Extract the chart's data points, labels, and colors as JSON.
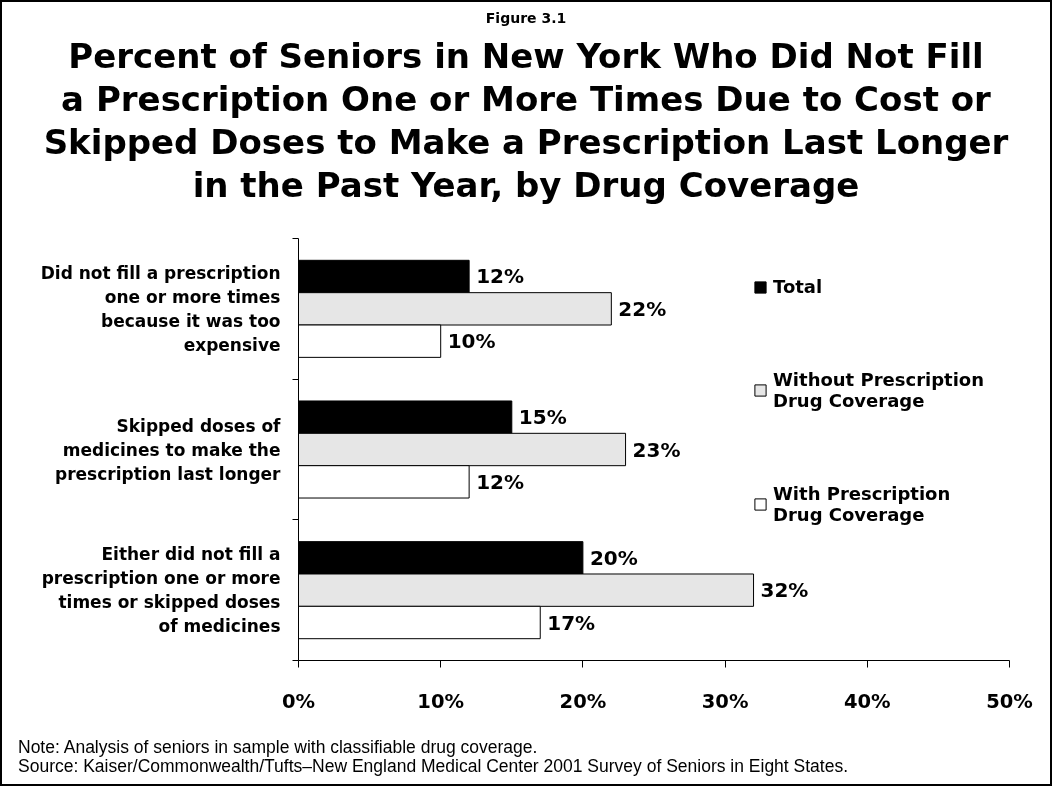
{
  "chart_data": {
    "type": "bar",
    "orientation": "horizontal",
    "subtitle": "Figure 3.1",
    "title": "Percent of Seniors in New York Who Did Not Fill\na Prescription One or More Times Due to Cost or\nSkipped Doses to Make a Prescription Last Longer\nin the Past Year, by Drug Coverage",
    "categories": [
      "Did not fill a prescription\none or more times\nbecause it was too\nexpensive",
      "Skipped doses of\nmedicines to make the\nprescription last longer",
      "Either did not fill a\nprescription one or more\ntimes or skipped doses\nof medicines"
    ],
    "series": [
      {
        "name": "Total",
        "color": "#000000",
        "values": [
          12,
          15,
          20
        ],
        "value_labels": [
          "12%",
          "15%",
          "20%"
        ]
      },
      {
        "name": "Without Prescription\nDrug Coverage",
        "color": "#e6e6e6",
        "values": [
          22,
          23,
          32
        ],
        "value_labels": [
          "22%",
          "23%",
          "32%"
        ]
      },
      {
        "name": "With Prescription\nDrug Coverage",
        "color": "#ffffff",
        "values": [
          10,
          12,
          17
        ],
        "value_labels": [
          "10%",
          "12%",
          "17%"
        ]
      }
    ],
    "xlim": [
      0,
      50
    ],
    "xticks": [
      {
        "value": 0,
        "label": "0%"
      },
      {
        "value": 10,
        "label": "10%"
      },
      {
        "value": 20,
        "label": "20%"
      },
      {
        "value": 30,
        "label": "30%"
      },
      {
        "value": 40,
        "label": "40%"
      },
      {
        "value": 50,
        "label": "50%"
      }
    ],
    "legend": "top right",
    "annotations": [
      "Note: Analysis of seniors in sample with classifiable drug coverage.",
      "Source: Kaiser/Commonwealth/Tufts–New England Medical Center 2001 Survey of Seniors in Eight States."
    ]
  }
}
